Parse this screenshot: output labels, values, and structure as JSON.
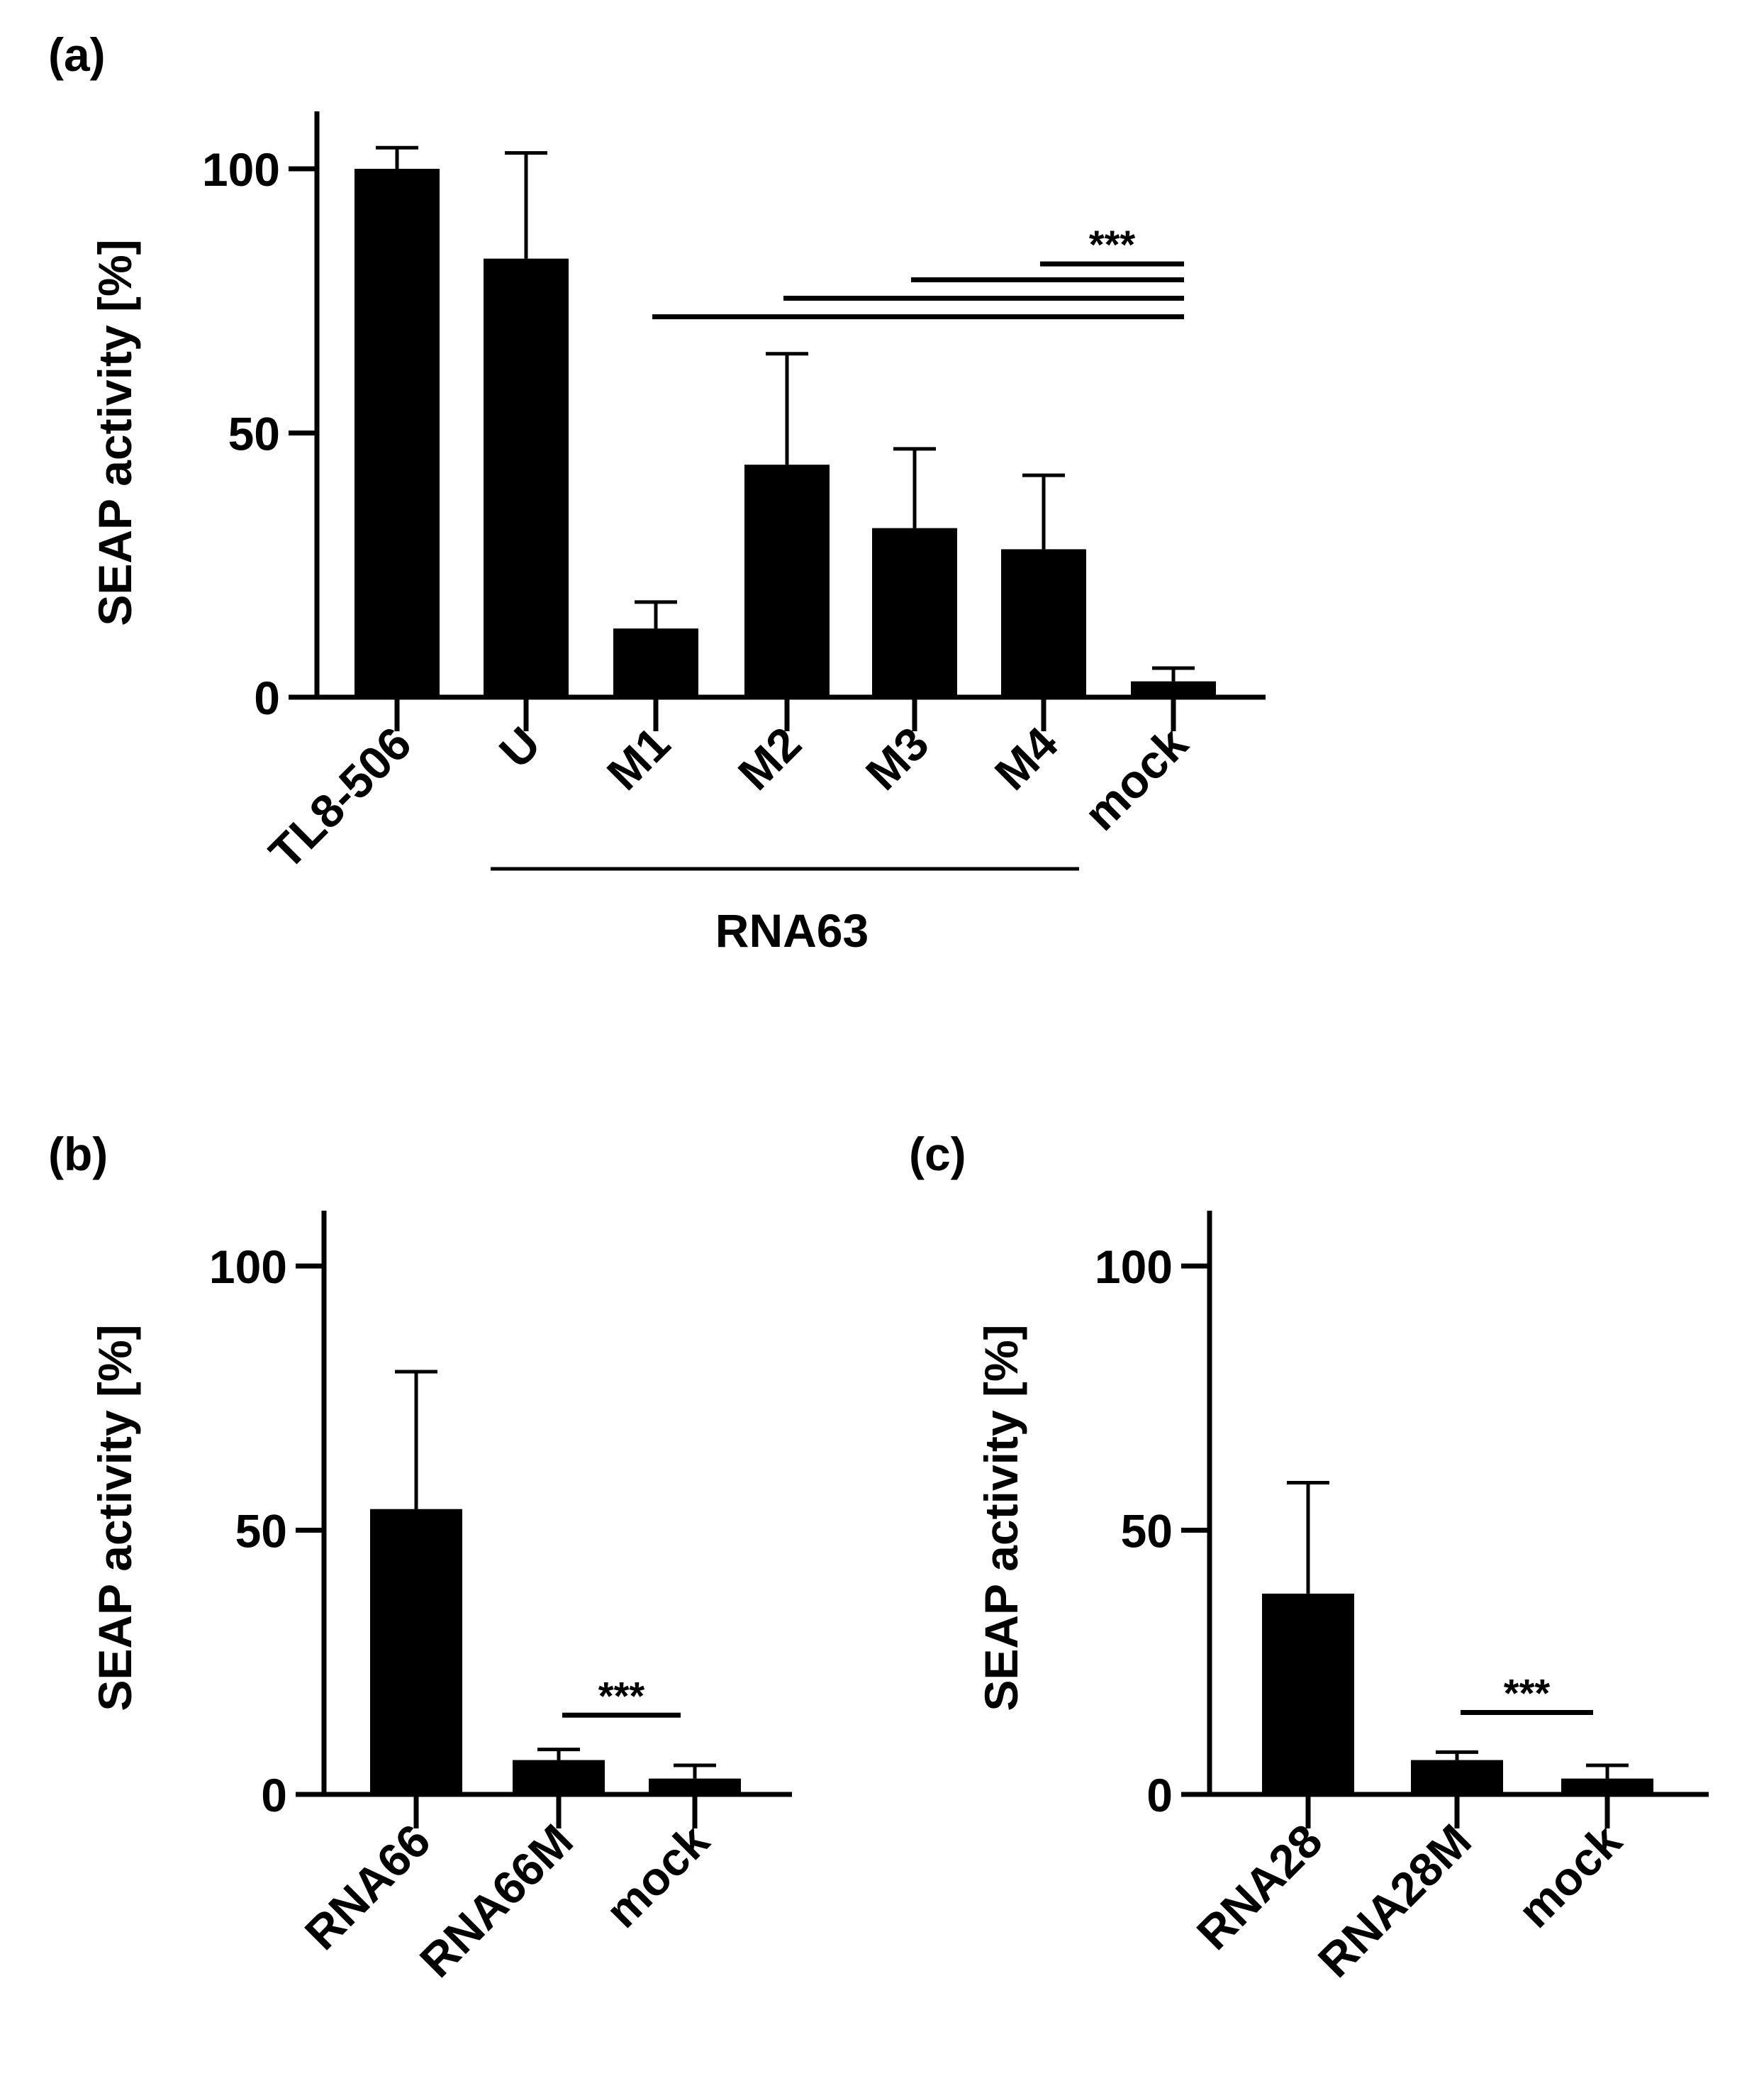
{
  "colors": {
    "bar": "#000000",
    "axis": "#000000",
    "background": "#ffffff"
  },
  "chart_data": [
    {
      "panel_label": "(a)",
      "type": "bar",
      "ylabel": "SEAP activity [%]",
      "ylim": [
        0,
        110
      ],
      "yticks": [
        "0",
        "50",
        "100"
      ],
      "categories": [
        "TL8-506",
        "U",
        "M1",
        "M2",
        "M3",
        "M4",
        "mock"
      ],
      "values": [
        100,
        83,
        13,
        44,
        32,
        28,
        3
      ],
      "errors": [
        4,
        20,
        5,
        21,
        15,
        14,
        2.5
      ],
      "group": {
        "label": "RNA63",
        "from": 1,
        "to": 5
      },
      "significance": {
        "label": "***",
        "lines": [
          {
            "from": 2,
            "to": 6,
            "y": 72
          },
          {
            "from": 3,
            "to": 6,
            "y": 75.5
          },
          {
            "from": 4,
            "to": 6,
            "y": 79
          },
          {
            "from": 5,
            "to": 6,
            "y": 82
          }
        ]
      }
    },
    {
      "panel_label": "(b)",
      "type": "bar",
      "ylabel": "SEAP activity [%]",
      "ylim": [
        0,
        110
      ],
      "yticks": [
        "0",
        "50",
        "100"
      ],
      "categories": [
        "RNA66",
        "RNA66M",
        "mock"
      ],
      "values": [
        54,
        6.5,
        3
      ],
      "errors": [
        26,
        2,
        2.5
      ],
      "significance": {
        "label": "***",
        "lines": [
          {
            "from": 1,
            "to": 2,
            "y": 15
          }
        ]
      }
    },
    {
      "panel_label": "(c)",
      "type": "bar",
      "ylabel": "SEAP activity [%]",
      "ylim": [
        0,
        110
      ],
      "yticks": [
        "0",
        "50",
        "100"
      ],
      "categories": [
        "RNA28",
        "RNA28M",
        "mock"
      ],
      "values": [
        38,
        6.5,
        3
      ],
      "errors": [
        21,
        1.5,
        2.5
      ],
      "significance": {
        "label": "***",
        "lines": [
          {
            "from": 1,
            "to": 2,
            "y": 15.5
          }
        ]
      }
    }
  ]
}
